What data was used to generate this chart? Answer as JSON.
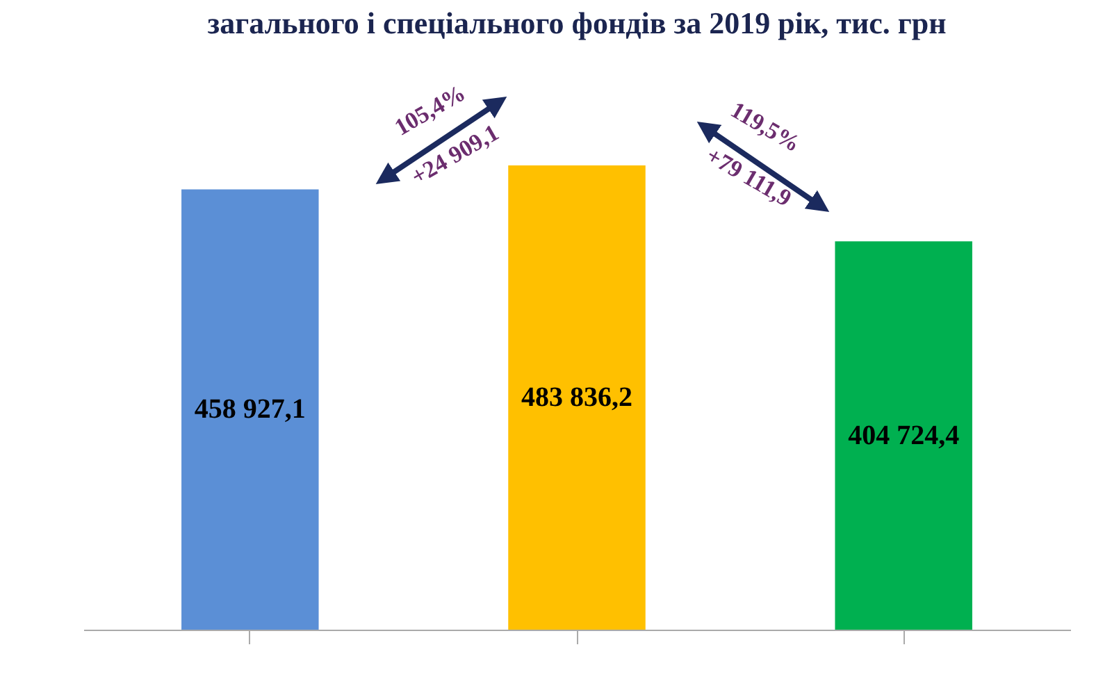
{
  "chart_data": {
    "type": "bar",
    "title": "загального і спеціального фондів за 2019 рік, тис. грн",
    "categories": [
      null,
      null,
      null
    ],
    "values": [
      458927.1,
      483836.2,
      404724.4
    ],
    "colors": [
      "#5b8fd6",
      "#ffc000",
      "#00b050"
    ],
    "value_labels": [
      "458 927,1",
      "483 836,2",
      "404 724,4"
    ],
    "annotations": [
      "105,4%",
      "+24 909,1",
      "119,5%",
      "+79 111,9"
    ],
    "grid": false
  }
}
